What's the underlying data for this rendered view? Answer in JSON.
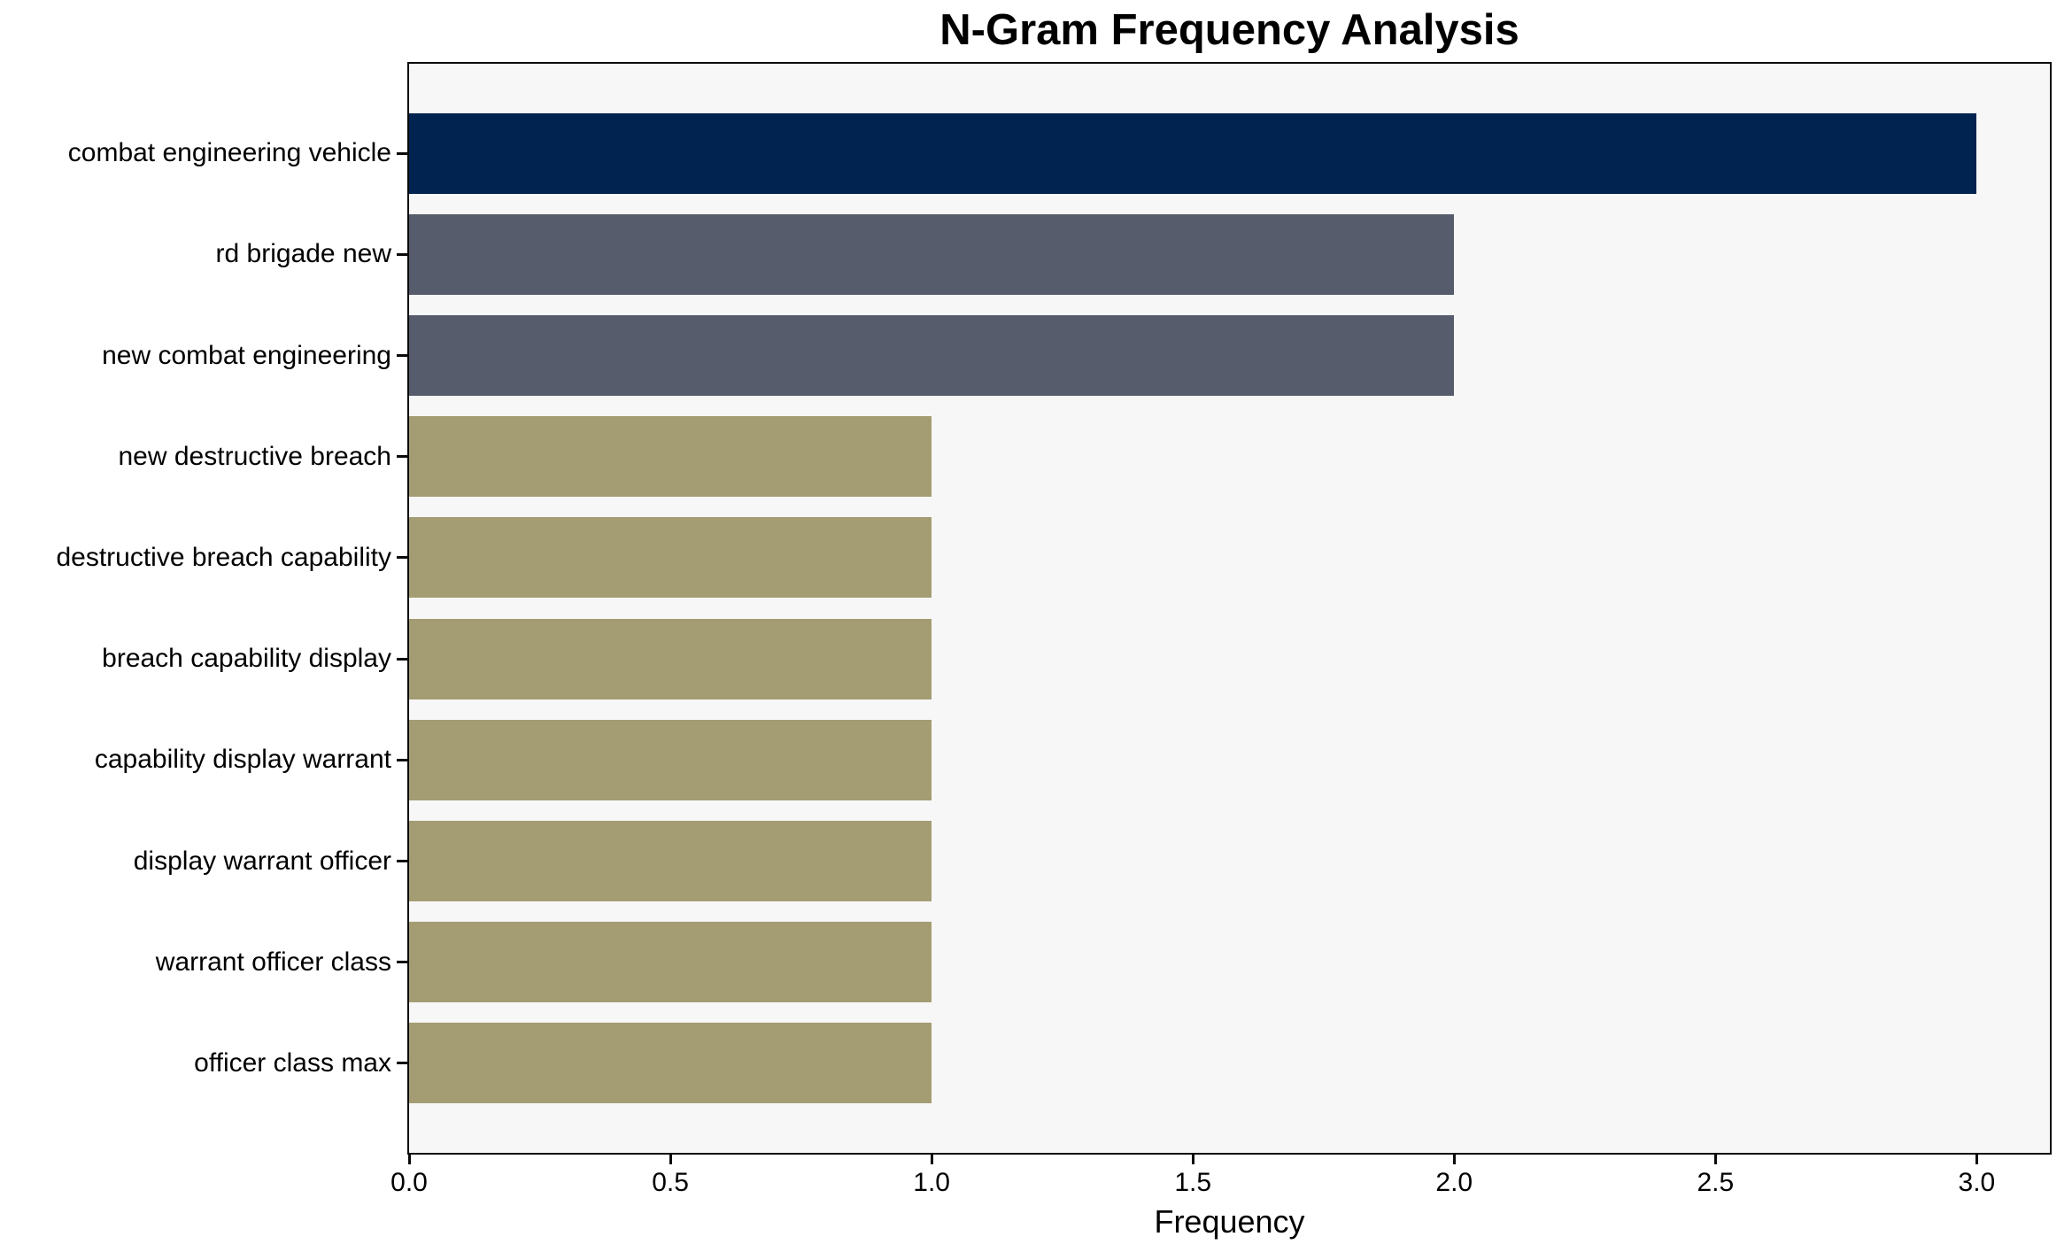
{
  "chart_data": {
    "type": "bar",
    "orientation": "horizontal",
    "title": "N-Gram Frequency Analysis",
    "xlabel": "Frequency",
    "ylabel": "",
    "categories": [
      "combat engineering vehicle",
      "rd brigade new",
      "new combat engineering",
      "new destructive breach",
      "destructive breach capability",
      "breach capability display",
      "capability display warrant",
      "display warrant officer",
      "warrant officer class",
      "officer class max"
    ],
    "values": [
      3,
      2,
      2,
      1,
      1,
      1,
      1,
      1,
      1,
      1
    ],
    "bar_colors": [
      "#002350",
      "#565c6c",
      "#565c6c",
      "#a49c72",
      "#a49c72",
      "#a49c72",
      "#a49c72",
      "#a49c72",
      "#a49c72",
      "#a49c72"
    ],
    "xlim": [
      0,
      3.14
    ],
    "x_ticks": [
      0.0,
      0.5,
      1.0,
      1.5,
      2.0,
      2.5,
      3.0
    ],
    "x_tick_labels": [
      "0.0",
      "0.5",
      "1.0",
      "1.5",
      "2.0",
      "2.5",
      "3.0"
    ],
    "grid": false,
    "legend": null,
    "bar_height_fraction": 0.8,
    "style": {
      "plot_background": "#f7f7f8",
      "page_background": "#ffffff",
      "spine_color": "#0a0a0a",
      "text_color": "#000000"
    }
  }
}
